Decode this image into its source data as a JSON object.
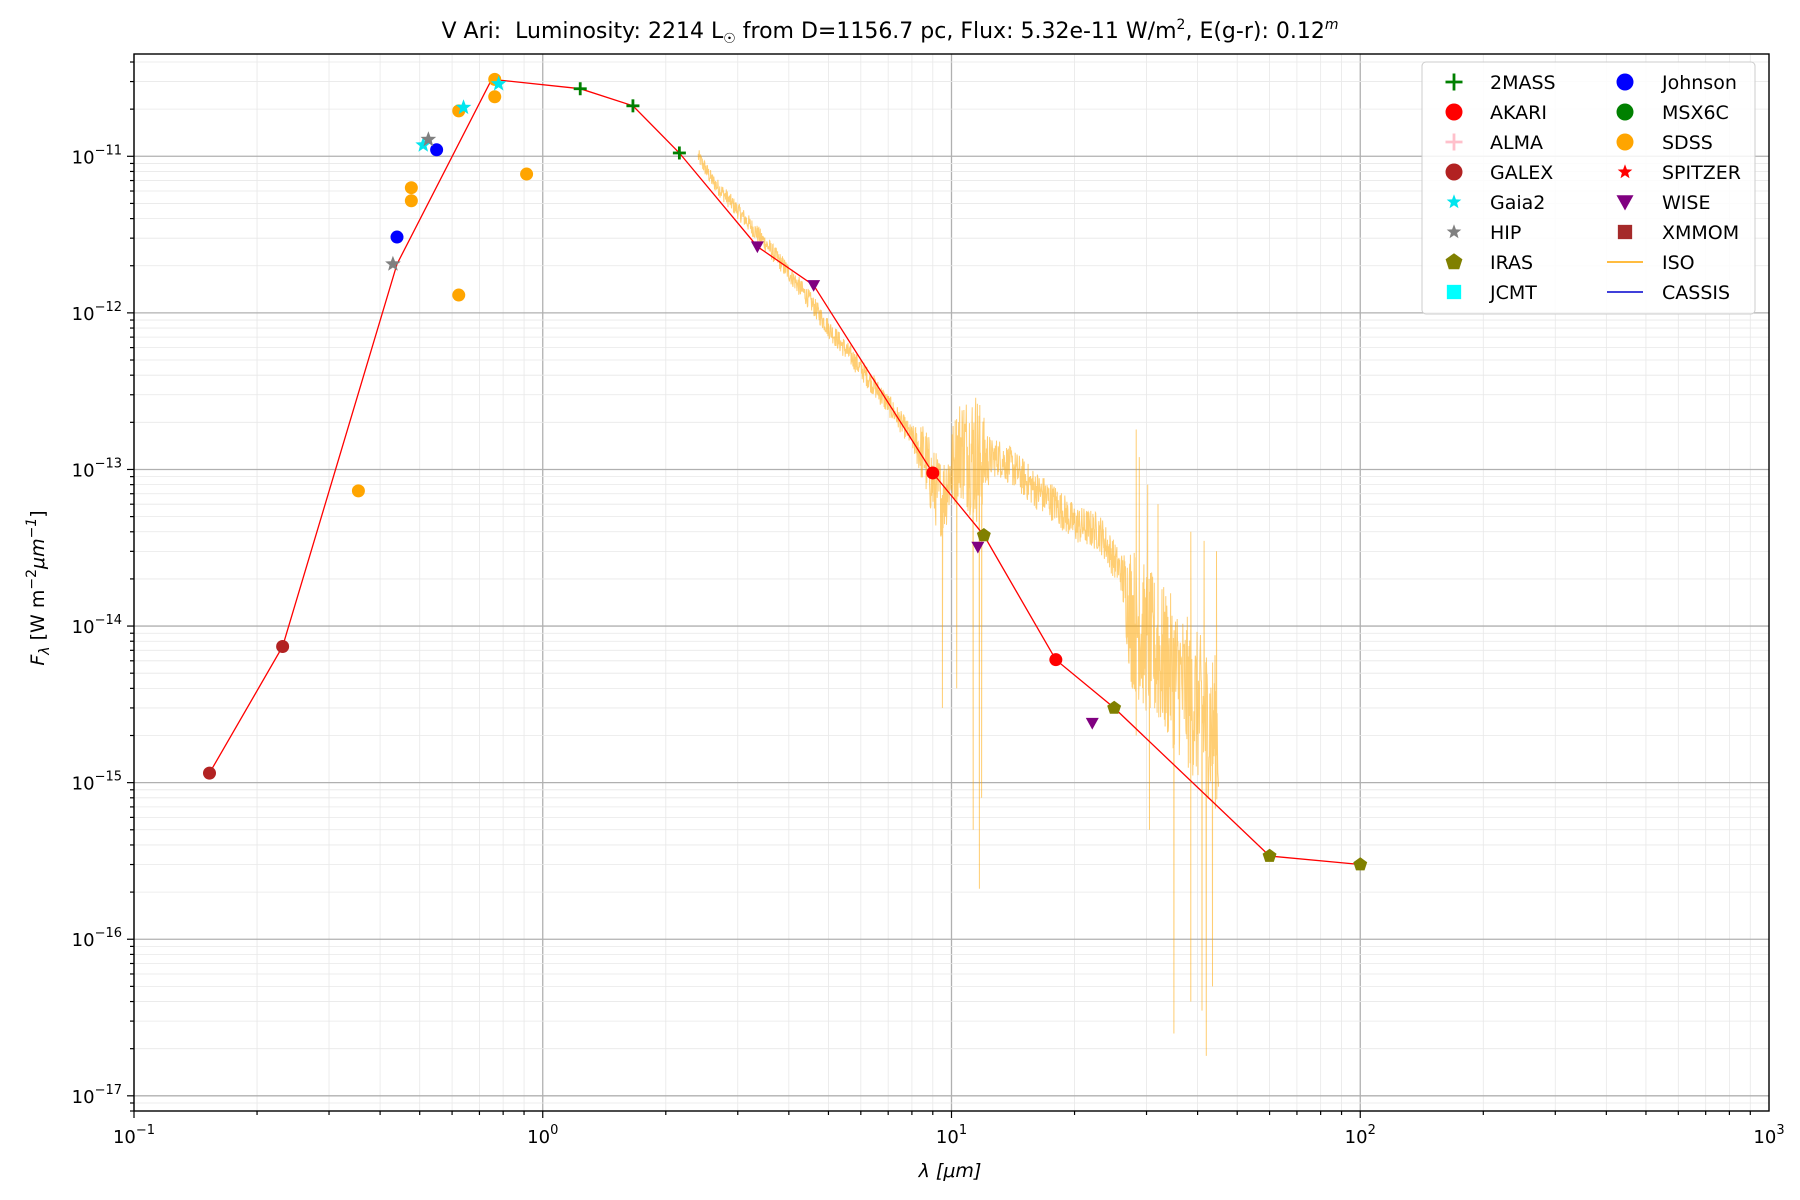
{
  "chart_data": {
    "type": "scatter",
    "title": {
      "star": "V Ari:",
      "lum_pre": "Luminosity: 2214 L",
      "sun": "☉",
      "lum_post": " from D=1156.7 pc, Flux: 5.32e-11 W/m",
      "flux_sup": "2",
      "ext": ", E(g-r): 0.12",
      "ext_sup": "m"
    },
    "xlabel": {
      "sym": "λ",
      "unit": " [μm]"
    },
    "ylabel": {
      "sym": "F",
      "sub": "λ",
      "unit_a": " [W m",
      "sup1": "−2",
      "mu": "μm",
      "sup2": "−1",
      "close": "]"
    },
    "x_scale": "log",
    "y_scale": "log",
    "xlim": [
      0.1,
      1000
    ],
    "ylim": [
      8e-18,
      4.5e-11
    ],
    "grid": true,
    "legend_position": "top-right",
    "x_ticks": [
      {
        "value": 0.1,
        "base": "10",
        "exp": "−1"
      },
      {
        "value": 1,
        "base": "10",
        "exp": "0"
      },
      {
        "value": 10,
        "base": "10",
        "exp": "1"
      },
      {
        "value": 100,
        "base": "10",
        "exp": "2"
      },
      {
        "value": 1000,
        "base": "10",
        "exp": "3"
      }
    ],
    "y_ticks": [
      {
        "value": 1e-17,
        "base": "10",
        "exp": "−17"
      },
      {
        "value": 1e-16,
        "base": "10",
        "exp": "−16"
      },
      {
        "value": 1e-15,
        "base": "10",
        "exp": "−15"
      },
      {
        "value": 1e-14,
        "base": "10",
        "exp": "−14"
      },
      {
        "value": 1e-13,
        "base": "10",
        "exp": "−13"
      },
      {
        "value": 1e-12,
        "base": "10",
        "exp": "−12"
      },
      {
        "value": 1e-11,
        "base": "10",
        "exp": "−11"
      }
    ],
    "sed_line": {
      "color": "#ff0000",
      "points": [
        [
          0.153,
          1.15e-15
        ],
        [
          0.231,
          7.4e-15
        ],
        [
          0.44,
          2.05e-12
        ],
        [
          0.75,
          3.1e-11
        ],
        [
          1.235,
          2.7e-11
        ],
        [
          1.662,
          2.1e-11
        ],
        [
          2.159,
          1.05e-11
        ],
        [
          3.35,
          2.65e-12
        ],
        [
          4.6,
          1.5e-12
        ],
        [
          9.0,
          9.5e-14
        ],
        [
          12.0,
          3.8e-14
        ],
        [
          18.0,
          6.1e-15
        ],
        [
          25.0,
          3e-15
        ],
        [
          60.0,
          3.4e-16
        ],
        [
          100.0,
          3e-16
        ]
      ]
    },
    "series": [
      {
        "name": "2MASS",
        "marker": "plus",
        "color": "#008000",
        "points": [
          [
            1.235,
            2.7e-11
          ],
          [
            1.662,
            2.1e-11
          ],
          [
            2.159,
            1.05e-11
          ]
        ]
      },
      {
        "name": "AKARI",
        "marker": "circle",
        "color": "#ff0000",
        "points": [
          [
            9.0,
            9.5e-14
          ],
          [
            18.0,
            6.1e-15
          ]
        ]
      },
      {
        "name": "ALMA",
        "marker": "plus",
        "color": "#ffc0cb",
        "points": []
      },
      {
        "name": "GALEX",
        "marker": "circle",
        "color": "#b22222",
        "points": [
          [
            0.153,
            1.15e-15
          ],
          [
            0.231,
            7.4e-15
          ]
        ]
      },
      {
        "name": "Gaia2",
        "marker": "star",
        "color": "#00e5ee",
        "points": [
          [
            0.51,
            1.18e-11
          ],
          [
            0.64,
            2.05e-11
          ],
          [
            0.78,
            2.9e-11
          ]
        ]
      },
      {
        "name": "HIP",
        "marker": "star",
        "color": "#808080",
        "points": [
          [
            0.43,
            2.05e-12
          ],
          [
            0.525,
            1.28e-11
          ]
        ]
      },
      {
        "name": "IRAS",
        "marker": "pentagon",
        "color": "#808000",
        "points": [
          [
            12.0,
            3.8e-14
          ],
          [
            25.0,
            3e-15
          ],
          [
            60.0,
            3.4e-16
          ],
          [
            100.0,
            3e-16
          ]
        ]
      },
      {
        "name": "JCMT",
        "marker": "square",
        "color": "#00ffff",
        "points": []
      },
      {
        "name": "Johnson",
        "marker": "circle",
        "color": "#0000ff",
        "points": [
          [
            0.44,
            3.05e-12
          ],
          [
            0.55,
            1.1e-11
          ]
        ]
      },
      {
        "name": "MSX6C",
        "marker": "circle",
        "color": "#008000",
        "points": []
      },
      {
        "name": "SDSS",
        "marker": "circle",
        "color": "#ffa500",
        "points": [
          [
            0.354,
            7.3e-14
          ],
          [
            0.477,
            6.3e-12
          ],
          [
            0.477,
            5.2e-12
          ],
          [
            0.623,
            1.95e-11
          ],
          [
            0.623,
            1.3e-12
          ],
          [
            0.763,
            3.1e-11
          ],
          [
            0.763,
            2.4e-11
          ],
          [
            0.913,
            7.7e-12
          ]
        ]
      },
      {
        "name": "SPITZER",
        "marker": "star",
        "color": "#ff0000",
        "points": []
      },
      {
        "name": "WISE",
        "marker": "tri-down",
        "color": "#800080",
        "points": [
          [
            3.35,
            2.65e-12
          ],
          [
            4.6,
            1.5e-12
          ],
          [
            11.6,
            3.2e-14
          ],
          [
            22.1,
            2.4e-15
          ]
        ]
      },
      {
        "name": "XMMOM",
        "marker": "square",
        "color": "#a52a2a",
        "points": []
      },
      {
        "name": "ISO",
        "marker": "line",
        "color": "#ffa500",
        "points": []
      },
      {
        "name": "CASSIS",
        "marker": "line",
        "color": "#0000cd",
        "points": []
      }
    ],
    "iso_spectrum": {
      "color": "#ffa500",
      "anchors": [
        [
          2.4,
          1e-11
        ],
        [
          2.6,
          7e-12
        ],
        [
          3.0,
          4.5e-12
        ],
        [
          3.5,
          2.8e-12
        ],
        [
          4.0,
          1.8e-12
        ],
        [
          4.5,
          1.2e-12
        ],
        [
          5.0,
          8e-13
        ],
        [
          6.0,
          4.4e-13
        ],
        [
          7.0,
          2.6e-13
        ],
        [
          8.0,
          1.6e-13
        ],
        [
          8.6,
          1.2e-13
        ],
        [
          9.0,
          8e-14
        ],
        [
          9.5,
          6.5e-14
        ],
        [
          10.0,
          1e-13
        ],
        [
          10.5,
          1.4e-13
        ],
        [
          11.0,
          1.3e-13
        ],
        [
          12.0,
          1.15e-13
        ],
        [
          13.0,
          1.2e-13
        ],
        [
          14.0,
          1.05e-13
        ],
        [
          16.0,
          7.5e-14
        ],
        [
          18.0,
          6e-14
        ],
        [
          20.0,
          4.5e-14
        ],
        [
          23.0,
          4e-14
        ],
        [
          26.0,
          2.2e-14
        ],
        [
          27.5,
          1.2e-14
        ],
        [
          30.0,
          8e-15
        ],
        [
          35.0,
          5e-15
        ],
        [
          40.0,
          3e-15
        ],
        [
          45.0,
          2e-15
        ]
      ],
      "noise": [
        [
          2.4,
          0.1
        ],
        [
          8.0,
          0.15
        ],
        [
          8.6,
          0.45
        ],
        [
          10.0,
          0.55
        ],
        [
          11.5,
          0.9
        ],
        [
          12.5,
          0.25
        ],
        [
          26.0,
          0.25
        ],
        [
          27.5,
          0.95
        ],
        [
          45.0,
          1.0
        ]
      ],
      "dips": [
        [
          9.5,
          3e-15
        ],
        [
          10.3,
          4e-15
        ],
        [
          11.3,
          5e-16
        ],
        [
          11.7,
          2.1e-16
        ],
        [
          11.85,
          8e-16
        ],
        [
          28.3,
          2e-15
        ],
        [
          30.5,
          5e-16
        ],
        [
          35.0,
          2.5e-17
        ],
        [
          38.5,
          4e-17
        ],
        [
          41.0,
          3.5e-17
        ],
        [
          42.0,
          1.8e-17
        ],
        [
          43.5,
          5e-17
        ]
      ],
      "spikes": [
        [
          28.3,
          1.8e-13
        ],
        [
          28.8,
          1.2e-13
        ],
        [
          30.2,
          8e-14
        ],
        [
          32.0,
          6e-14
        ],
        [
          38.5,
          4e-14
        ],
        [
          41.5,
          3.5e-14
        ],
        [
          44.5,
          3e-14
        ]
      ]
    }
  }
}
